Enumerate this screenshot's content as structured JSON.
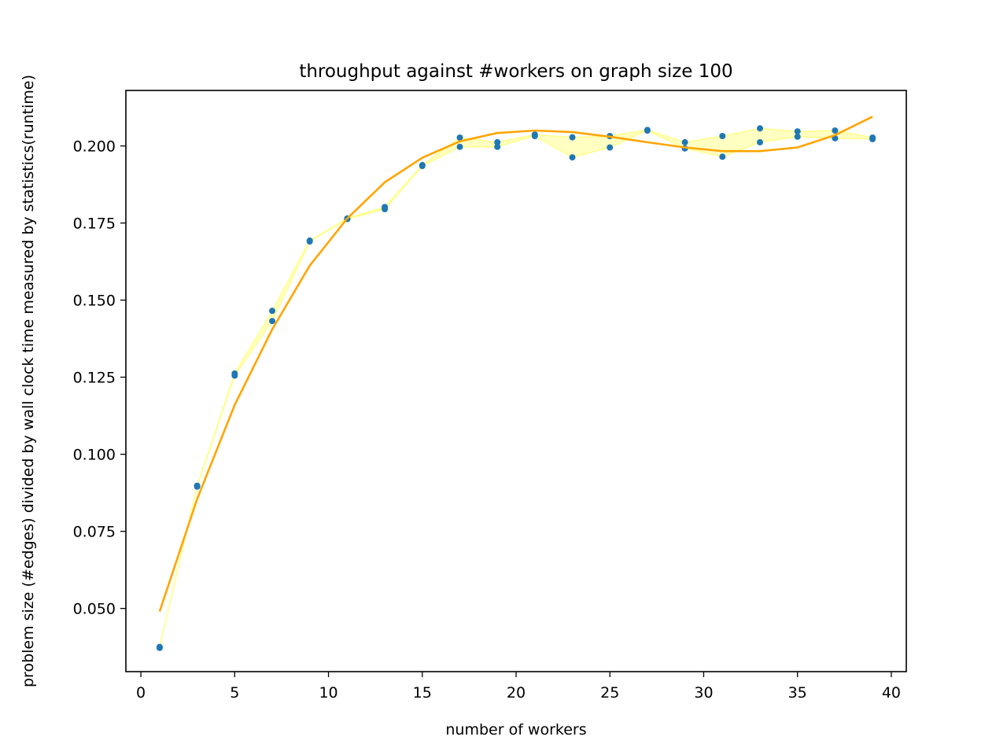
{
  "chart_data": {
    "type": "scatter",
    "title": "throughput against #workers on graph size 100",
    "xlabel": "number of workers",
    "ylabel": "problem size (#edges) divided by wall clock time measured by statistics(runtime)",
    "xlim": [
      -0.8,
      40.8
    ],
    "ylim": [
      0.0295,
      0.218
    ],
    "xticks": [
      0,
      5,
      10,
      15,
      20,
      25,
      30,
      35,
      40
    ],
    "xtick_labels": [
      "0",
      "5",
      "10",
      "15",
      "20",
      "25",
      "30",
      "35",
      "40"
    ],
    "yticks": [
      0.05,
      0.075,
      0.1,
      0.125,
      0.15,
      0.175,
      0.2
    ],
    "ytick_labels": [
      "0.050",
      "0.075",
      "0.100",
      "0.125",
      "0.150",
      "0.175",
      "0.200"
    ],
    "grid": false,
    "legend": "none",
    "colors": {
      "points": "#1f77b4",
      "band": "#ffff66",
      "band_edge": "#ffff66",
      "fit": "#ffa500",
      "axes": "#000000"
    },
    "series": [
      {
        "kind": "scatter",
        "x": [
          1,
          1,
          3,
          3,
          5,
          5,
          7,
          7,
          9,
          9,
          11,
          11,
          13,
          13,
          15,
          15,
          17,
          17,
          19,
          19,
          21,
          21,
          23,
          23,
          25,
          25,
          27,
          27,
          29,
          29,
          31,
          31,
          33,
          33,
          35,
          35,
          37,
          37,
          39,
          39
        ],
        "y": [
          0.0372,
          0.0375,
          0.0895,
          0.0898,
          0.1255,
          0.1262,
          0.1432,
          0.1465,
          0.169,
          0.1693,
          0.1763,
          0.1765,
          0.1795,
          0.1802,
          0.1935,
          0.1938,
          0.1997,
          0.2027,
          0.1997,
          0.2012,
          0.2032,
          0.2037,
          0.1963,
          0.2028,
          0.1995,
          0.2032,
          0.205,
          0.2052,
          0.1992,
          0.2012,
          0.1965,
          0.2032,
          0.2012,
          0.2057,
          0.203,
          0.2047,
          0.2025,
          0.205,
          0.2022,
          0.2027
        ]
      },
      {
        "kind": "band",
        "x": [
          1,
          3,
          5,
          7,
          9,
          11,
          13,
          15,
          17,
          19,
          21,
          23,
          25,
          27,
          29,
          31,
          33,
          35,
          37,
          39
        ],
        "low": [
          0.0372,
          0.0895,
          0.1255,
          0.1432,
          0.169,
          0.1763,
          0.1795,
          0.1935,
          0.1997,
          0.1997,
          0.2032,
          0.1963,
          0.1995,
          0.205,
          0.1992,
          0.1965,
          0.2012,
          0.203,
          0.2025,
          0.2022
        ],
        "high": [
          0.0375,
          0.0898,
          0.1262,
          0.1465,
          0.1693,
          0.1765,
          0.1802,
          0.1938,
          0.2027,
          0.2012,
          0.2037,
          0.2028,
          0.2032,
          0.2052,
          0.2012,
          0.2032,
          0.2057,
          0.2047,
          0.205,
          0.2027
        ]
      },
      {
        "kind": "line",
        "x": [
          1,
          3,
          5,
          7,
          9,
          11,
          13,
          15,
          17,
          19,
          21,
          23,
          25,
          27,
          29,
          31,
          33,
          35,
          37,
          39
        ],
        "y": [
          0.049,
          0.0855,
          0.116,
          0.1405,
          0.1612,
          0.1765,
          0.1882,
          0.1962,
          0.2015,
          0.2042,
          0.205,
          0.2045,
          0.203,
          0.2012,
          0.1995,
          0.1983,
          0.1983,
          0.1995,
          0.2035,
          0.2095
        ]
      }
    ]
  }
}
